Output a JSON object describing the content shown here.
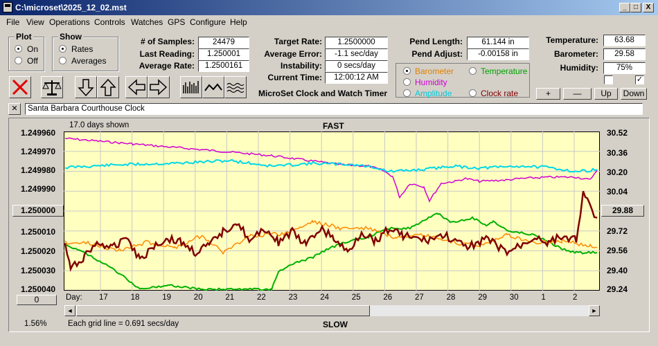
{
  "window": {
    "title": "C:\\microset\\2025_12_02.mst",
    "min": "_",
    "max": "□",
    "close": "X"
  },
  "menu": [
    "File",
    "View",
    "Operations",
    "Controls",
    "Watches",
    "GPS",
    "Configure",
    "Help"
  ],
  "plot_group": {
    "label": "Plot",
    "on": "On",
    "off": "Off",
    "selected": "On"
  },
  "show_group": {
    "label": "Show",
    "rates": "Rates",
    "averages": "Averages",
    "selected": "Rates"
  },
  "stats": {
    "samples_label": "# of Samples:",
    "samples": "24479",
    "last_label": "Last Reading:",
    "last": "1.250001",
    "avg_rate_label": "Average Rate:",
    "avg_rate": "1.2500161",
    "target_label": "Target Rate:",
    "target": "1.2500000",
    "avg_err_label": "Average Error:",
    "avg_err": "-1.1 sec/day",
    "instab_label": "Instability:",
    "instab": "0 secs/day",
    "time_label": "Current Time:",
    "time": "12:00:12 AM",
    "pend_len_label": "Pend Length:",
    "pend_len": "61.144 in",
    "pend_adj_label": "Pend Adjust:",
    "pend_adj": "-0.00158 in",
    "temp_label": "Temperature:",
    "temp": "63.68",
    "baro_label": "Barometer:",
    "baro": "29.58",
    "hum_label": "Humidity:",
    "hum": "75%"
  },
  "app_caption": "MicroSet Clock and Watch Timer",
  "sensor_select": {
    "barometer": "Barometer",
    "temperature": "Temperature",
    "humidity": "Humidity",
    "amplitude": "Amplitude",
    "clock_rate": "Clock rate",
    "selected": "Barometer",
    "colors": {
      "barometer": "#e08000",
      "temperature": "#00a000",
      "humidity": "#d000d0",
      "amplitude": "#00c8d8",
      "clock_rate": "#800000"
    }
  },
  "adjust_buttons": {
    "plus": "+",
    "minus": "—",
    "up": "Up",
    "down": "Down"
  },
  "watch_name": "Santa Barbara Courthouse Clock",
  "close_x": "✕",
  "graph": {
    "days_shown": "17.0 days shown",
    "top_label": "FAST",
    "bottom_label": "SLOW",
    "grid_note": "Each grid line = 0.691 secs/day",
    "zoom": "1.56%",
    "left_button": "1.250000",
    "right_button": "29.88",
    "zero_button": "0",
    "day_prefix": "Day:",
    "left_ticks": [
      "1.249960",
      "1.249970",
      "1.249980",
      "1.249990",
      "1.250000",
      "1.250010",
      "1.250020",
      "1.250030",
      "1.250040"
    ],
    "right_ticks": [
      "30.52",
      "30.36",
      "30.20",
      "30.04",
      "29.88",
      "29.72",
      "29.56",
      "29.40",
      "29.24"
    ],
    "day_ticks": [
      "17",
      "18",
      "19",
      "20",
      "21",
      "22",
      "23",
      "24",
      "25",
      "26",
      "27",
      "28",
      "29",
      "30",
      "1",
      "2"
    ],
    "scroll_left": "◄",
    "scroll_right": "►"
  }
}
